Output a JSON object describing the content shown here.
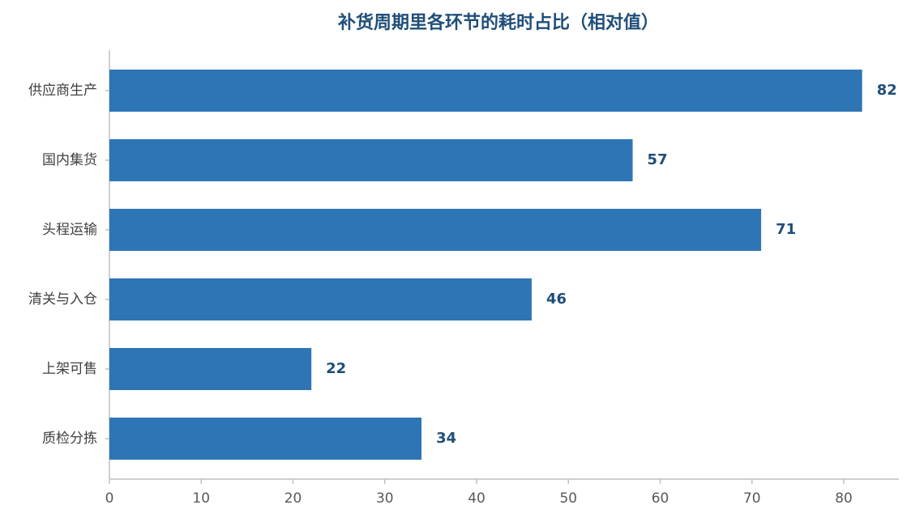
{
  "chart_data": {
    "type": "bar",
    "orientation": "horizontal",
    "title": "补货周期里各环节的耗时占比（相对值）",
    "categories": [
      "供应商生产",
      "国内集货",
      "头程运输",
      "清关与入仓",
      "上架可售",
      "质检分拣"
    ],
    "values": [
      82,
      57,
      71,
      46,
      22,
      34
    ],
    "color": "#2e75b6",
    "xlim": [
      0,
      86
    ],
    "xticks": [
      0,
      10,
      20,
      30,
      40,
      50,
      60,
      70,
      80
    ],
    "grid": false
  }
}
